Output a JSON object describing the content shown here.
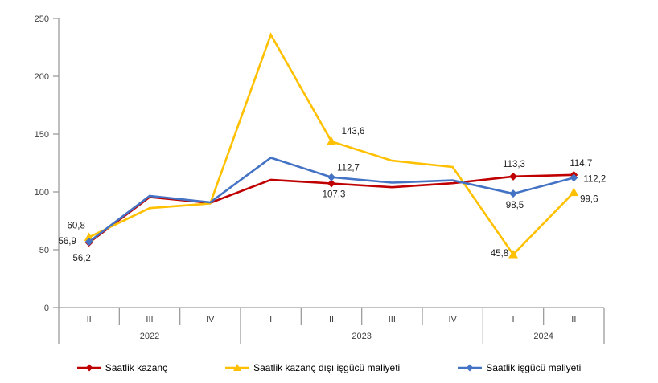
{
  "chart_data": {
    "type": "line",
    "title": "",
    "xlabel": "",
    "ylabel": "",
    "ylim": [
      0,
      250
    ],
    "grid": false,
    "legend_position": "bottom",
    "y_ticks": [
      "0",
      "50",
      "100",
      "150",
      "200",
      "250"
    ],
    "categories": [
      "II",
      "III",
      "IV",
      "I",
      "II",
      "III",
      "IV",
      "I",
      "II"
    ],
    "year_groups": [
      {
        "label": "2022",
        "span": 3
      },
      {
        "label": "2023",
        "span": 4
      },
      {
        "label": "2024",
        "span": 2
      }
    ],
    "series": [
      {
        "name": "Saatlik kazanç",
        "color": "#C00000",
        "marker": "diamond",
        "values": [
          56.2,
          95.5,
          90.5,
          110.5,
          107.3,
          104,
          107.5,
          113.3,
          114.7
        ],
        "labels": {
          "0": "56,2",
          "4": "107,3",
          "7": "113,3",
          "8": "114,7"
        }
      },
      {
        "name": "Saatlik kazanç dışı işgücü maliyeti",
        "color": "#FFC000",
        "marker": "triangle",
        "values": [
          60.8,
          86,
          90,
          236,
          143.6,
          127,
          121.5,
          45.8,
          99.6
        ],
        "labels": {
          "0": "60,8",
          "4": "143,6",
          "7": "45,8",
          "8": "99,6"
        }
      },
      {
        "name": "Saatlik işgücü maliyeti",
        "color": "#4472C4",
        "marker": "diamond",
        "values": [
          56.9,
          96.5,
          91,
          129.5,
          112.7,
          108,
          110,
          98.5,
          112.2
        ],
        "labels": {
          "0": "56,9",
          "4": "112,7",
          "7": "98,5",
          "8": "112,2"
        }
      }
    ],
    "axis_color": "#9c9c9c"
  }
}
